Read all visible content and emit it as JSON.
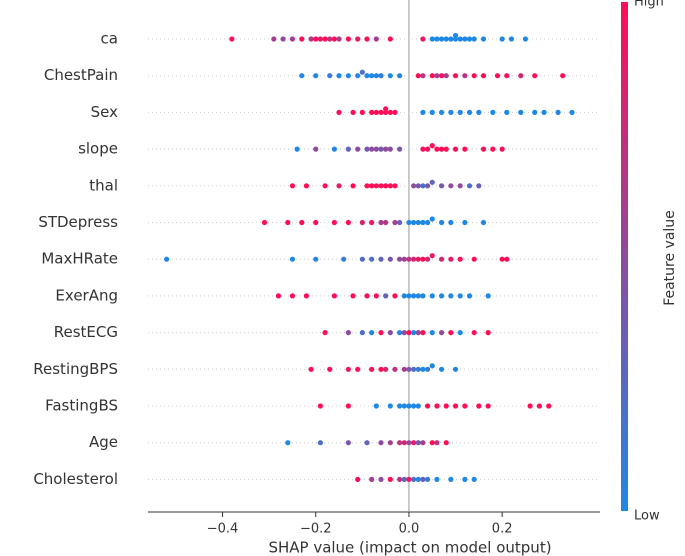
{
  "chart_data": {
    "type": "beeswarm",
    "x_label": "SHAP value (impact on model output)",
    "colorbar_label": "Feature value",
    "colorbar_high": "High",
    "colorbar_low": "Low",
    "low_color": "#1e88e5",
    "high_color": "#ff0d57",
    "xlim": [
      -0.56,
      0.41
    ],
    "xticks": [
      {
        "value": -0.4,
        "label": "−0.4"
      },
      {
        "value": -0.2,
        "label": "−0.2"
      },
      {
        "value": 0,
        "label": "0.0"
      },
      0.2
    ],
    "features": [
      {
        "name": "ca",
        "points": [
          [
            -0.38,
            1
          ],
          [
            -0.29,
            0.6
          ],
          [
            -0.27,
            0.5
          ],
          [
            -0.25,
            0.6
          ],
          [
            -0.23,
            1
          ],
          [
            -0.21,
            0.7
          ],
          [
            -0.2,
            1
          ],
          [
            -0.19,
            0.9
          ],
          [
            -0.18,
            1
          ],
          [
            -0.17,
            0.7
          ],
          [
            -0.16,
            1
          ],
          [
            -0.15,
            0.6
          ],
          [
            -0.13,
            1
          ],
          [
            -0.11,
            0.9
          ],
          [
            -0.09,
            1
          ],
          [
            -0.07,
            0.6
          ],
          [
            -0.04,
            1
          ],
          [
            0.03,
            0.9
          ],
          [
            0.05,
            0
          ],
          [
            0.06,
            0
          ],
          [
            0.07,
            0
          ],
          [
            0.08,
            0
          ],
          [
            0.09,
            0
          ],
          [
            0.1,
            0
          ],
          [
            0.1,
            0
          ],
          [
            0.11,
            0
          ],
          [
            0.12,
            0
          ],
          [
            0.13,
            0
          ],
          [
            0.14,
            0
          ],
          [
            0.16,
            0
          ],
          [
            0.2,
            0
          ],
          [
            0.22,
            0
          ],
          [
            0.25,
            0
          ]
        ]
      },
      {
        "name": "ChestPain",
        "points": [
          [
            -0.23,
            0
          ],
          [
            -0.2,
            0
          ],
          [
            -0.17,
            0.1
          ],
          [
            -0.15,
            0
          ],
          [
            -0.13,
            0
          ],
          [
            -0.11,
            0
          ],
          [
            -0.1,
            0.2
          ],
          [
            -0.09,
            0
          ],
          [
            -0.08,
            0
          ],
          [
            -0.07,
            0
          ],
          [
            -0.06,
            0.1
          ],
          [
            -0.04,
            0
          ],
          [
            -0.02,
            0
          ],
          [
            0.02,
            1
          ],
          [
            0.03,
            0.7
          ],
          [
            0.05,
            1
          ],
          [
            0.06,
            0.6
          ],
          [
            0.07,
            1
          ],
          [
            0.08,
            0.6
          ],
          [
            0.1,
            1
          ],
          [
            0.12,
            0.7
          ],
          [
            0.14,
            1
          ],
          [
            0.16,
            1
          ],
          [
            0.19,
            1
          ],
          [
            0.21,
            1
          ],
          [
            0.24,
            0.8
          ],
          [
            0.27,
            1
          ],
          [
            0.33,
            1
          ]
        ]
      },
      {
        "name": "Sex",
        "points": [
          [
            -0.15,
            1
          ],
          [
            -0.12,
            1
          ],
          [
            -0.1,
            1
          ],
          [
            -0.08,
            1
          ],
          [
            -0.07,
            1
          ],
          [
            -0.06,
            1
          ],
          [
            -0.05,
            1
          ],
          [
            -0.05,
            1
          ],
          [
            -0.04,
            1
          ],
          [
            -0.03,
            1
          ],
          [
            0.03,
            0
          ],
          [
            0.05,
            0
          ],
          [
            0.07,
            0
          ],
          [
            0.09,
            0
          ],
          [
            0.11,
            0
          ],
          [
            0.13,
            0
          ],
          [
            0.15,
            0
          ],
          [
            0.18,
            0
          ],
          [
            0.21,
            0
          ],
          [
            0.24,
            0
          ],
          [
            0.27,
            0
          ],
          [
            0.29,
            0
          ],
          [
            0.32,
            0
          ],
          [
            0.35,
            0
          ]
        ]
      },
      {
        "name": "slope",
        "points": [
          [
            -0.24,
            0
          ],
          [
            -0.2,
            0.5
          ],
          [
            -0.16,
            0
          ],
          [
            -0.13,
            0.3
          ],
          [
            -0.11,
            0.5
          ],
          [
            -0.09,
            0.4
          ],
          [
            -0.08,
            0.5
          ],
          [
            -0.07,
            0.5
          ],
          [
            -0.06,
            0.4
          ],
          [
            -0.05,
            0.5
          ],
          [
            -0.04,
            0.5
          ],
          [
            -0.02,
            0.4
          ],
          [
            0.03,
            1
          ],
          [
            0.04,
            1
          ],
          [
            0.05,
            1
          ],
          [
            0.06,
            1
          ],
          [
            0.07,
            1
          ],
          [
            0.08,
            1
          ],
          [
            0.1,
            1
          ],
          [
            0.12,
            1
          ],
          [
            0.16,
            1
          ],
          [
            0.18,
            1
          ],
          [
            0.2,
            1
          ]
        ]
      },
      {
        "name": "thal",
        "points": [
          [
            -0.25,
            1
          ],
          [
            -0.22,
            1
          ],
          [
            -0.18,
            1
          ],
          [
            -0.15,
            0.9
          ],
          [
            -0.12,
            1
          ],
          [
            -0.09,
            1
          ],
          [
            -0.08,
            1
          ],
          [
            -0.07,
            1
          ],
          [
            -0.06,
            1
          ],
          [
            -0.05,
            1
          ],
          [
            -0.04,
            1
          ],
          [
            -0.03,
            1
          ],
          [
            0.01,
            0.5
          ],
          [
            0.02,
            0.4
          ],
          [
            0.03,
            0.2
          ],
          [
            0.04,
            0.4
          ],
          [
            0.05,
            0.3
          ],
          [
            0.07,
            0.4
          ],
          [
            0.09,
            0.5
          ],
          [
            0.11,
            0.5
          ],
          [
            0.13,
            0.2
          ],
          [
            0.15,
            0.3
          ]
        ]
      },
      {
        "name": "STDepress",
        "points": [
          [
            -0.31,
            1
          ],
          [
            -0.26,
            1
          ],
          [
            -0.23,
            1
          ],
          [
            -0.2,
            1
          ],
          [
            -0.16,
            1
          ],
          [
            -0.13,
            1
          ],
          [
            -0.1,
            0.8
          ],
          [
            -0.08,
            0.9
          ],
          [
            -0.06,
            0.6
          ],
          [
            -0.05,
            0.7
          ],
          [
            -0.03,
            0.6
          ],
          [
            -0.02,
            0.3
          ],
          [
            0,
            0
          ],
          [
            0.01,
            0
          ],
          [
            0.02,
            0
          ],
          [
            0.03,
            0
          ],
          [
            0.04,
            0
          ],
          [
            0.05,
            0
          ],
          [
            0.07,
            0
          ],
          [
            0.09,
            0
          ],
          [
            0.12,
            0
          ],
          [
            0.16,
            0
          ]
        ]
      },
      {
        "name": "MaxHRate",
        "points": [
          [
            -0.52,
            0
          ],
          [
            -0.25,
            0
          ],
          [
            -0.2,
            0
          ],
          [
            -0.14,
            0.1
          ],
          [
            -0.1,
            0.2
          ],
          [
            -0.08,
            0.2
          ],
          [
            -0.06,
            0.3
          ],
          [
            -0.04,
            0.4
          ],
          [
            -0.02,
            0.5
          ],
          [
            -0.01,
            0.6
          ],
          [
            0,
            0.7
          ],
          [
            0.01,
            0.8
          ],
          [
            0.02,
            0.9
          ],
          [
            0.03,
            1
          ],
          [
            0.04,
            0.8
          ],
          [
            0.05,
            0.9
          ],
          [
            0.07,
            0.8
          ],
          [
            0.09,
            0.9
          ],
          [
            0.11,
            1
          ],
          [
            0.14,
            1
          ],
          [
            0.2,
            1
          ],
          [
            0.21,
            1
          ]
        ]
      },
      {
        "name": "ExerAng",
        "points": [
          [
            -0.28,
            1
          ],
          [
            -0.25,
            1
          ],
          [
            -0.22,
            1
          ],
          [
            -0.16,
            1
          ],
          [
            -0.12,
            1
          ],
          [
            -0.09,
            1
          ],
          [
            -0.07,
            1
          ],
          [
            -0.05,
            0.3
          ],
          [
            -0.03,
            1
          ],
          [
            -0.01,
            0
          ],
          [
            0,
            0
          ],
          [
            0.01,
            0
          ],
          [
            0.02,
            0
          ],
          [
            0.03,
            0
          ],
          [
            0.05,
            0
          ],
          [
            0.07,
            0
          ],
          [
            0.09,
            0
          ],
          [
            0.11,
            0
          ],
          [
            0.13,
            0
          ],
          [
            0.17,
            0
          ]
        ]
      },
      {
        "name": "RestECG",
        "points": [
          [
            -0.18,
            1
          ],
          [
            -0.13,
            0.5
          ],
          [
            -0.1,
            0.2
          ],
          [
            -0.08,
            0
          ],
          [
            -0.06,
            1
          ],
          [
            -0.04,
            0.5
          ],
          [
            -0.02,
            0
          ],
          [
            -0.01,
            0.5
          ],
          [
            0,
            1
          ],
          [
            0.01,
            0
          ],
          [
            0.02,
            0.5
          ],
          [
            0.03,
            1
          ],
          [
            0.05,
            0
          ],
          [
            0.07,
            0.5
          ],
          [
            0.09,
            1
          ],
          [
            0.11,
            0
          ],
          [
            0.14,
            1
          ],
          [
            0.17,
            1
          ]
        ]
      },
      {
        "name": "RestingBPS",
        "points": [
          [
            -0.21,
            1
          ],
          [
            -0.17,
            1
          ],
          [
            -0.13,
            0.9
          ],
          [
            -0.11,
            1
          ],
          [
            -0.08,
            1
          ],
          [
            -0.06,
            1
          ],
          [
            -0.05,
            0.8
          ],
          [
            -0.03,
            0.7
          ],
          [
            -0.01,
            0.6
          ],
          [
            0,
            0.4
          ],
          [
            0.01,
            0.2
          ],
          [
            0.02,
            0.1
          ],
          [
            0.03,
            0
          ],
          [
            0.04,
            0.1
          ],
          [
            0.05,
            0
          ],
          [
            0.07,
            0
          ],
          [
            0.1,
            0
          ]
        ]
      },
      {
        "name": "FastingBS",
        "points": [
          [
            -0.19,
            1
          ],
          [
            -0.13,
            1
          ],
          [
            -0.07,
            0
          ],
          [
            -0.04,
            0
          ],
          [
            -0.02,
            0
          ],
          [
            -0.01,
            0
          ],
          [
            0,
            0
          ],
          [
            0.01,
            0
          ],
          [
            0.02,
            0
          ],
          [
            0.04,
            1
          ],
          [
            0.06,
            1
          ],
          [
            0.08,
            1
          ],
          [
            0.1,
            1
          ],
          [
            0.12,
            1
          ],
          [
            0.15,
            1
          ],
          [
            0.17,
            1
          ],
          [
            0.26,
            1
          ],
          [
            0.28,
            1
          ],
          [
            0.3,
            1
          ]
        ]
      },
      {
        "name": "Age",
        "points": [
          [
            -0.26,
            0
          ],
          [
            -0.19,
            0.2
          ],
          [
            -0.13,
            0.4
          ],
          [
            -0.09,
            0.3
          ],
          [
            -0.06,
            0.5
          ],
          [
            -0.04,
            0.6
          ],
          [
            -0.02,
            0.7
          ],
          [
            -0.01,
            0.8
          ],
          [
            0,
            0.5
          ],
          [
            0.01,
            0.9
          ],
          [
            0.02,
            0.4
          ],
          [
            0.03,
            0.6
          ],
          [
            0.05,
            1
          ],
          [
            0.06,
            0.7
          ],
          [
            0.08,
            1
          ]
        ]
      },
      {
        "name": "Cholesterol",
        "points": [
          [
            -0.11,
            1
          ],
          [
            -0.08,
            0.6
          ],
          [
            -0.06,
            0.5
          ],
          [
            -0.04,
            1
          ],
          [
            -0.02,
            0.7
          ],
          [
            -0.01,
            0.3
          ],
          [
            0,
            0.9
          ],
          [
            0.01,
            0.2
          ],
          [
            0.02,
            0
          ],
          [
            0.03,
            0.3
          ],
          [
            0.04,
            0.1
          ],
          [
            0.06,
            0
          ],
          [
            0.09,
            0
          ],
          [
            0.12,
            0
          ],
          [
            0.14,
            0
          ]
        ]
      }
    ]
  }
}
